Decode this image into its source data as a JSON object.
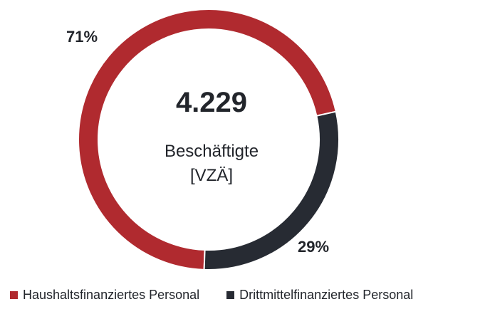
{
  "chart_data": {
    "type": "pie",
    "center": {
      "total": "4.229",
      "label_line1": "Beschäftigte",
      "label_line2": "[VZÄ]"
    },
    "categories": [
      "Haushaltsfinanziertes Personal",
      "Drittmittelfinanziertes Personal"
    ],
    "values": [
      71,
      29
    ],
    "data_labels": [
      "71%",
      "29%"
    ],
    "colors": [
      "#b02a2f",
      "#272b33"
    ],
    "legend_position": "bottom"
  }
}
